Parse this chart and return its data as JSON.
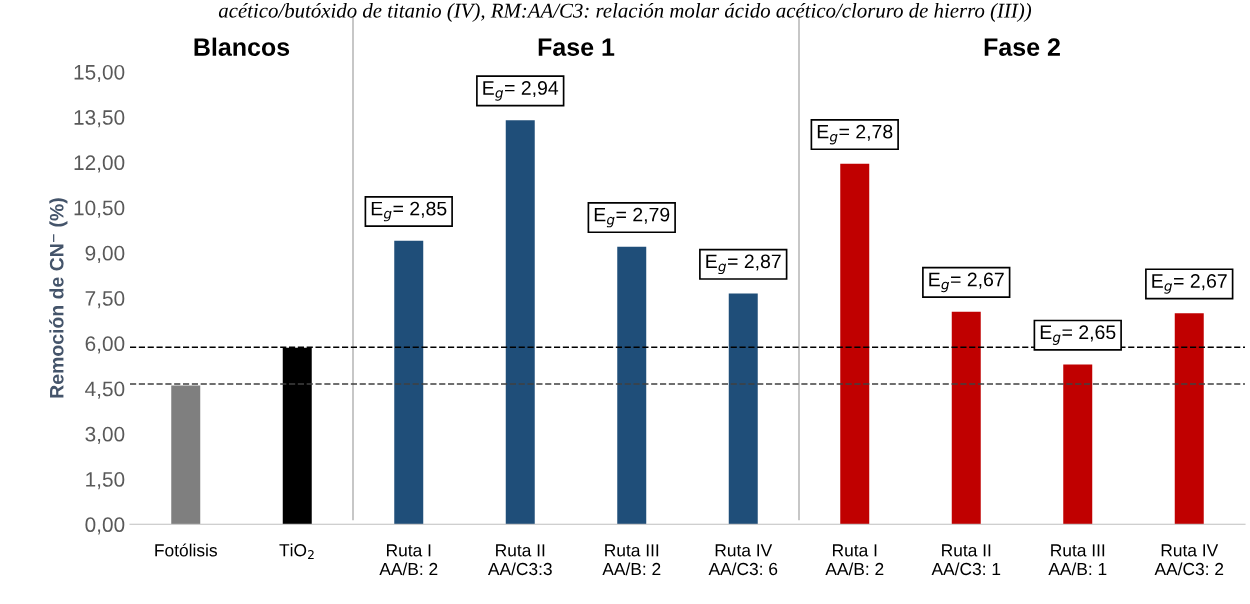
{
  "chart_data": {
    "type": "bar",
    "categories": [
      "Fotólisis",
      "TiO$_{2}$",
      "Ruta I\nAA/B: 2",
      "Ruta II\nAA/C3:3",
      "Ruta III\nAA/B: 2",
      "Ruta IV\nAA/C3: 6",
      "Ruta I\nAA/B: 2",
      "Ruta II\nAA/C3: 1",
      "Ruta III\nAA/B: 1",
      "Ruta IV\nAA/C3: 2"
    ],
    "values": [
      4.6,
      5.85,
      9.4,
      13.4,
      9.2,
      7.65,
      11.95,
      7.05,
      5.3,
      7.0
    ],
    "colors": [
      "#7f7f7f",
      "#000000",
      "#1f4e79",
      "#1f4e79",
      "#1f4e79",
      "#1f4e79",
      "#c00000",
      "#c00000",
      "#c00000",
      "#c00000"
    ],
    "ylabel": "Remoción de CN⁻ (%)",
    "ylim": [
      0,
      15
    ],
    "yticks": [
      {
        "value": 0,
        "label": "0,00"
      },
      {
        "value": 1.5,
        "label": "1,50"
      },
      {
        "value": 3,
        "label": "3,00"
      },
      {
        "value": 4.5,
        "label": "4,50"
      },
      {
        "value": 6,
        "label": "6,00"
      },
      {
        "value": 7.5,
        "label": "7,50"
      },
      {
        "value": 9,
        "label": "9,00"
      },
      {
        "value": 10.5,
        "label": "10,50"
      },
      {
        "value": 12,
        "label": "12,00"
      },
      {
        "value": 13.5,
        "label": "13,50"
      },
      {
        "value": 15,
        "label": "15,00"
      }
    ],
    "ref_lines": [
      {
        "axis": "y",
        "value": 5.87,
        "color": "#000000",
        "line_style": "dashed"
      },
      {
        "axis": "y",
        "value": 4.65,
        "color": "#404040",
        "line_style": "dashed"
      }
    ],
    "annotations": [
      "acético/butóxido de titanio (IV), RM:AA/C3: relación molar ácido acético/cloruro de hierro (III))",
      "Blancos",
      "Fase 1",
      "Fase 2",
      "E$_{g}$= 2,85",
      "E$_{g}$= 2,94",
      "E$_{g}$= 2,79",
      "E$_{g}$= 2,87",
      "E$_{g}$= 2,78",
      "E$_{g}$= 2,67",
      "E$_{g}$= 2,65",
      "E$_{g}$= 2,67"
    ],
    "grid": false,
    "legend": false
  }
}
